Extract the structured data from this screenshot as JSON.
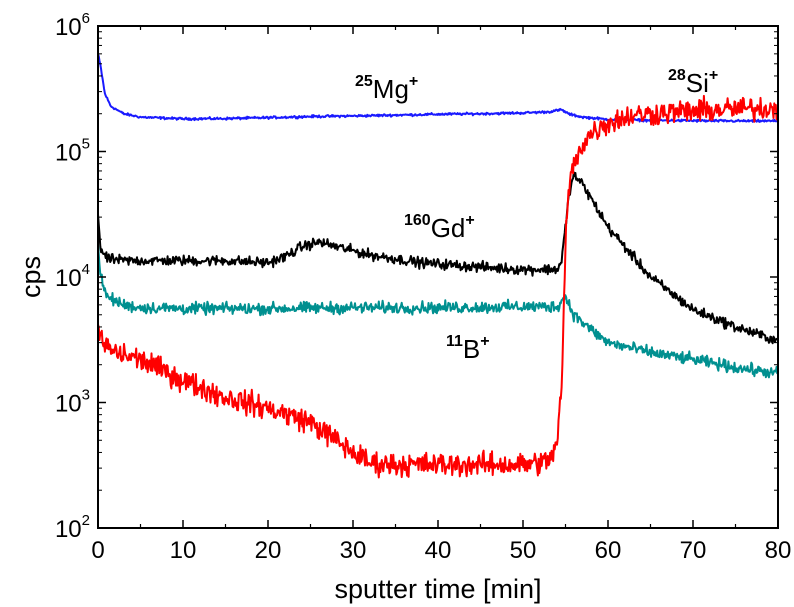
{
  "chart_data": {
    "type": "line",
    "xlabel": "sputter time [min]",
    "ylabel": "cps",
    "xlim": [
      0,
      80
    ],
    "ylim": [
      100,
      1000000
    ],
    "yscale": "log",
    "grid": false,
    "legend": "none",
    "x_ticks": [
      "0",
      "10",
      "20",
      "30",
      "40",
      "50",
      "60",
      "70",
      "80"
    ],
    "y_ticks": [
      {
        "base": "10",
        "exp": "2"
      },
      {
        "base": "10",
        "exp": "3"
      },
      {
        "base": "10",
        "exp": "4"
      },
      {
        "base": "10",
        "exp": "5"
      },
      {
        "base": "10",
        "exp": "6"
      }
    ],
    "series": [
      {
        "label": {
          "iso": "25",
          "el": "Mg",
          "charge": "+"
        },
        "color": "#1a1aff",
        "noise": 0.008,
        "points": [
          [
            0,
            600000
          ],
          [
            0.3,
            480000
          ],
          [
            0.8,
            290000
          ],
          [
            1.5,
            230000
          ],
          [
            3,
            200000
          ],
          [
            5,
            188000
          ],
          [
            10,
            182000
          ],
          [
            15,
            183000
          ],
          [
            20,
            186000
          ],
          [
            25,
            190000
          ],
          [
            30,
            192000
          ],
          [
            35,
            195000
          ],
          [
            40,
            198000
          ],
          [
            45,
            200000
          ],
          [
            50,
            203000
          ],
          [
            53,
            207000
          ],
          [
            54.5,
            215000
          ],
          [
            55.5,
            198000
          ],
          [
            57,
            188000
          ],
          [
            60,
            180000
          ],
          [
            65,
            177000
          ],
          [
            70,
            176000
          ],
          [
            75,
            175000
          ],
          [
            80,
            175000
          ]
        ]
      },
      {
        "label": {
          "iso": "28",
          "el": "Si",
          "charge": "+"
        },
        "color": "#ff0000",
        "noise": 0.08,
        "points": [
          [
            0,
            4000
          ],
          [
            0.5,
            3000
          ],
          [
            2,
            2500
          ],
          [
            5,
            2200
          ],
          [
            10,
            1500
          ],
          [
            15,
            1100
          ],
          [
            20,
            900
          ],
          [
            25,
            700
          ],
          [
            30,
            400
          ],
          [
            32,
            330
          ],
          [
            35,
            320
          ],
          [
            40,
            320
          ],
          [
            45,
            320
          ],
          [
            50,
            320
          ],
          [
            53,
            340
          ],
          [
            54,
            470
          ],
          [
            54.6,
            1500
          ],
          [
            55,
            20000
          ],
          [
            55.5,
            60000
          ],
          [
            56.5,
            100000
          ],
          [
            58,
            140000
          ],
          [
            60,
            170000
          ],
          [
            63,
            195000
          ],
          [
            67,
            205000
          ],
          [
            70,
            210000
          ],
          [
            75,
            218000
          ],
          [
            80,
            222000
          ]
        ]
      },
      {
        "label": {
          "iso": "160",
          "el": "Gd",
          "charge": "+"
        },
        "color": "#000000",
        "noise": 0.035,
        "points": [
          [
            0,
            32000
          ],
          [
            0.3,
            17000
          ],
          [
            1,
            14000
          ],
          [
            3,
            13500
          ],
          [
            10,
            13500
          ],
          [
            15,
            13500
          ],
          [
            20,
            13000
          ],
          [
            22,
            14500
          ],
          [
            24,
            17500
          ],
          [
            26,
            19000
          ],
          [
            28,
            17500
          ],
          [
            32,
            15000
          ],
          [
            38,
            13000
          ],
          [
            45,
            12000
          ],
          [
            50,
            11500
          ],
          [
            54,
            11500
          ],
          [
            54.5,
            13000
          ],
          [
            55,
            25000
          ],
          [
            55.5,
            50000
          ],
          [
            56,
            65000
          ],
          [
            57,
            55000
          ],
          [
            60,
            25000
          ],
          [
            65,
            10000
          ],
          [
            70,
            5500
          ],
          [
            75,
            4000
          ],
          [
            80,
            3100
          ]
        ]
      },
      {
        "label": {
          "iso": "11",
          "el": "B",
          "charge": "+"
        },
        "color": "#009090",
        "noise": 0.04,
        "points": [
          [
            0,
            20000
          ],
          [
            0.3,
            10000
          ],
          [
            1,
            7000
          ],
          [
            3,
            6000
          ],
          [
            5,
            5700
          ],
          [
            10,
            5600
          ],
          [
            20,
            5600
          ],
          [
            30,
            5700
          ],
          [
            40,
            5700
          ],
          [
            50,
            5800
          ],
          [
            54,
            5800
          ],
          [
            55,
            7000
          ],
          [
            56,
            5000
          ],
          [
            58,
            3800
          ],
          [
            60,
            3000
          ],
          [
            65,
            2500
          ],
          [
            70,
            2200
          ],
          [
            75,
            1900
          ],
          [
            80,
            1700
          ]
        ]
      }
    ]
  }
}
